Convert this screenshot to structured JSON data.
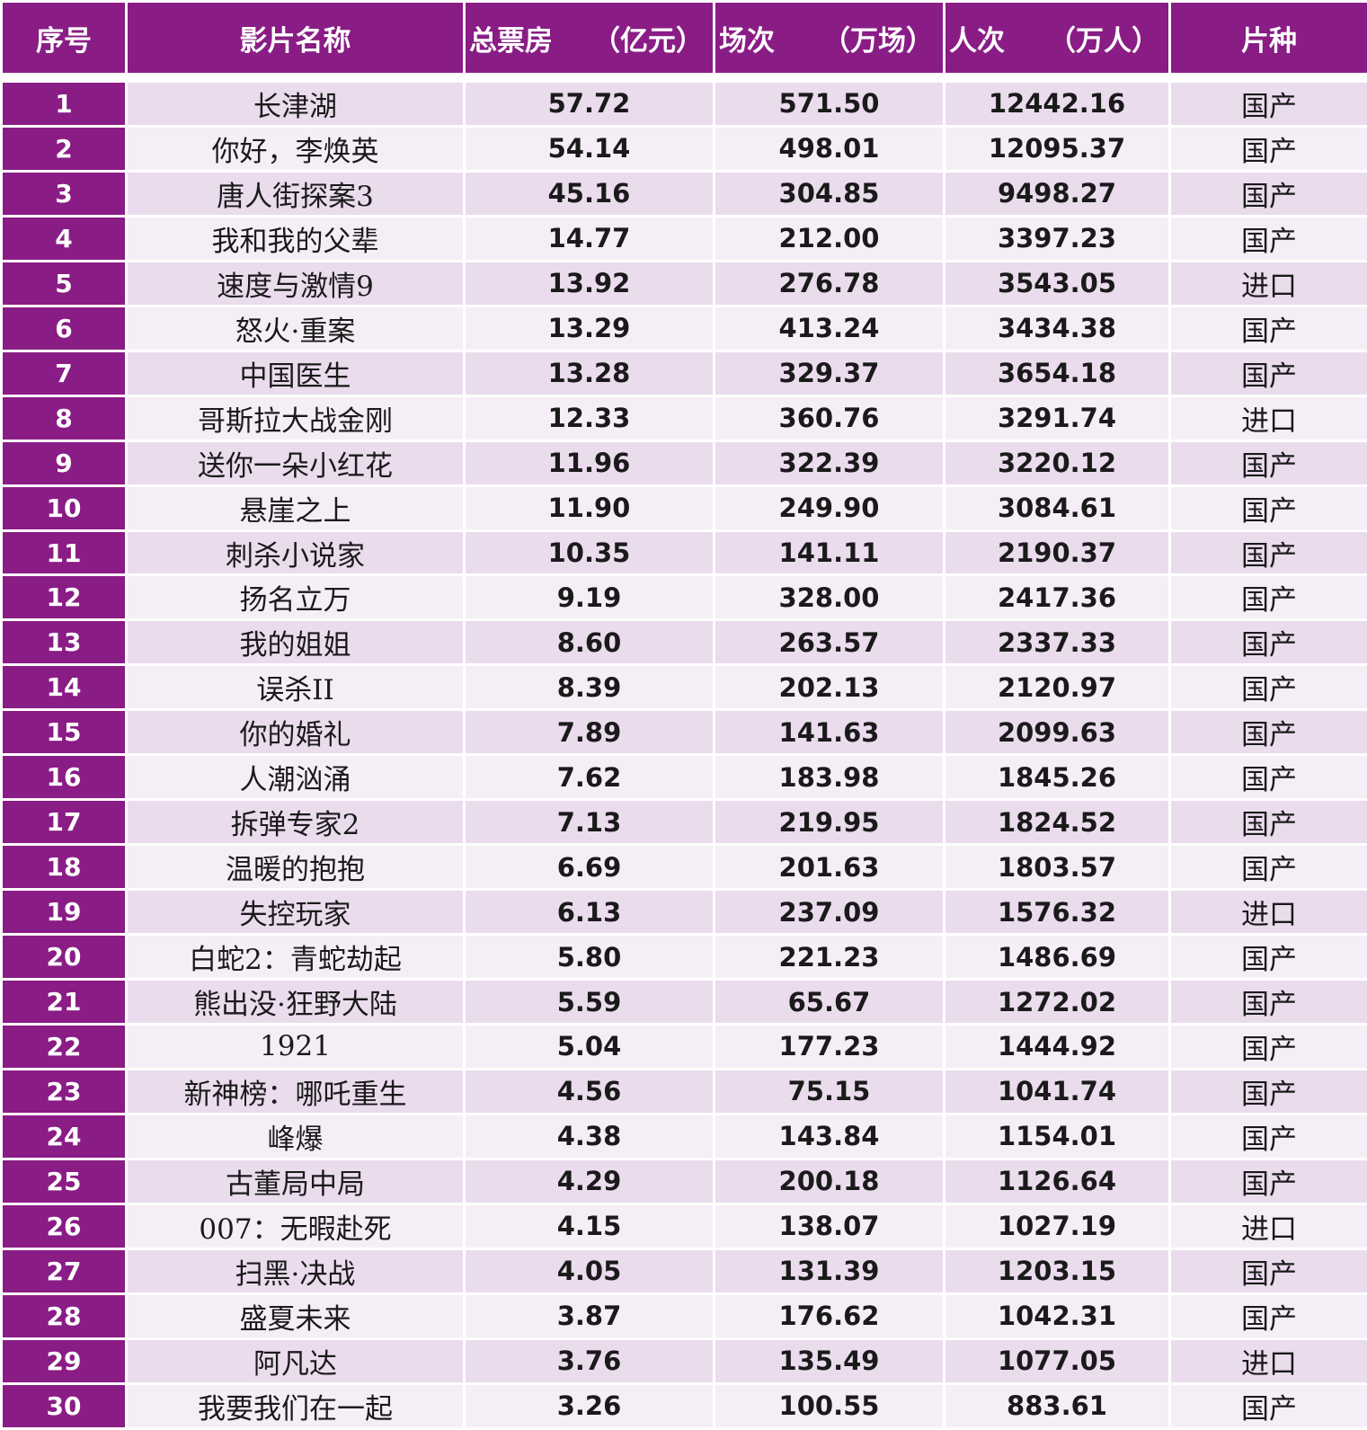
{
  "chart_data": {
    "type": "table",
    "columns": [
      "序号",
      "影片名称",
      "总票房",
      "（亿元）",
      "场次",
      "（万场）",
      "人次",
      "（万人）",
      "片种"
    ],
    "rows": [
      {
        "idx": "1",
        "title": "长津湖",
        "gross": "57.72",
        "shows": "571.50",
        "admissions": "12442.16",
        "type": "国产"
      },
      {
        "idx": "2",
        "title": "你好，李焕英",
        "gross": "54.14",
        "shows": "498.01",
        "admissions": "12095.37",
        "type": "国产"
      },
      {
        "idx": "3",
        "title": "唐人街探案3",
        "gross": "45.16",
        "shows": "304.85",
        "admissions": "9498.27",
        "type": "国产"
      },
      {
        "idx": "4",
        "title": "我和我的父辈",
        "gross": "14.77",
        "shows": "212.00",
        "admissions": "3397.23",
        "type": "国产"
      },
      {
        "idx": "5",
        "title": "速度与激情9",
        "gross": "13.92",
        "shows": "276.78",
        "admissions": "3543.05",
        "type": "进口"
      },
      {
        "idx": "6",
        "title": "怒火·重案",
        "gross": "13.29",
        "shows": "413.24",
        "admissions": "3434.38",
        "type": "国产"
      },
      {
        "idx": "7",
        "title": "中国医生",
        "gross": "13.28",
        "shows": "329.37",
        "admissions": "3654.18",
        "type": "国产"
      },
      {
        "idx": "8",
        "title": "哥斯拉大战金刚",
        "gross": "12.33",
        "shows": "360.76",
        "admissions": "3291.74",
        "type": "进口"
      },
      {
        "idx": "9",
        "title": "送你一朵小红花",
        "gross": "11.96",
        "shows": "322.39",
        "admissions": "3220.12",
        "type": "国产"
      },
      {
        "idx": "10",
        "title": "悬崖之上",
        "gross": "11.90",
        "shows": "249.90",
        "admissions": "3084.61",
        "type": "国产"
      },
      {
        "idx": "11",
        "title": "刺杀小说家",
        "gross": "10.35",
        "shows": "141.11",
        "admissions": "2190.37",
        "type": "国产"
      },
      {
        "idx": "12",
        "title": "扬名立万",
        "gross": "9.19",
        "shows": "328.00",
        "admissions": "2417.36",
        "type": "国产"
      },
      {
        "idx": "13",
        "title": "我的姐姐",
        "gross": "8.60",
        "shows": "263.57",
        "admissions": "2337.33",
        "type": "国产"
      },
      {
        "idx": "14",
        "title": "误杀II",
        "gross": "8.39",
        "shows": "202.13",
        "admissions": "2120.97",
        "type": "国产"
      },
      {
        "idx": "15",
        "title": "你的婚礼",
        "gross": "7.89",
        "shows": "141.63",
        "admissions": "2099.63",
        "type": "国产"
      },
      {
        "idx": "16",
        "title": "人潮汹涌",
        "gross": "7.62",
        "shows": "183.98",
        "admissions": "1845.26",
        "type": "国产"
      },
      {
        "idx": "17",
        "title": "拆弹专家2",
        "gross": "7.13",
        "shows": "219.95",
        "admissions": "1824.52",
        "type": "国产"
      },
      {
        "idx": "18",
        "title": "温暖的抱抱",
        "gross": "6.69",
        "shows": "201.63",
        "admissions": "1803.57",
        "type": "国产"
      },
      {
        "idx": "19",
        "title": "失控玩家",
        "gross": "6.13",
        "shows": "237.09",
        "admissions": "1576.32",
        "type": "进口"
      },
      {
        "idx": "20",
        "title": "白蛇2：青蛇劫起",
        "gross": "5.80",
        "shows": "221.23",
        "admissions": "1486.69",
        "type": "国产"
      },
      {
        "idx": "21",
        "title": "熊出没·狂野大陆",
        "gross": "5.59",
        "shows": "65.67",
        "admissions": "1272.02",
        "type": "国产"
      },
      {
        "idx": "22",
        "title": "1921",
        "gross": "5.04",
        "shows": "177.23",
        "admissions": "1444.92",
        "type": "国产"
      },
      {
        "idx": "23",
        "title": "新神榜：哪吒重生",
        "gross": "4.56",
        "shows": "75.15",
        "admissions": "1041.74",
        "type": "国产"
      },
      {
        "idx": "24",
        "title": "峰爆",
        "gross": "4.38",
        "shows": "143.84",
        "admissions": "1154.01",
        "type": "国产"
      },
      {
        "idx": "25",
        "title": "古董局中局",
        "gross": "4.29",
        "shows": "200.18",
        "admissions": "1126.64",
        "type": "国产"
      },
      {
        "idx": "26",
        "title": "007：无暇赴死",
        "gross": "4.15",
        "shows": "138.07",
        "admissions": "1027.19",
        "type": "进口"
      },
      {
        "idx": "27",
        "title": "扫黑·决战",
        "gross": "4.05",
        "shows": "131.39",
        "admissions": "1203.15",
        "type": "国产"
      },
      {
        "idx": "28",
        "title": "盛夏未来",
        "gross": "3.87",
        "shows": "176.62",
        "admissions": "1042.31",
        "type": "国产"
      },
      {
        "idx": "29",
        "title": "阿凡达",
        "gross": "3.76",
        "shows": "135.49",
        "admissions": "1077.05",
        "type": "进口"
      },
      {
        "idx": "30",
        "title": "我要我们在一起",
        "gross": "3.26",
        "shows": "100.55",
        "admissions": "883.61",
        "type": "国产"
      }
    ]
  },
  "colors": {
    "header_bg": "#8a1c86",
    "header_text": "#ffffff",
    "row_odd": "#eadbed",
    "row_even": "#f6eef7"
  }
}
